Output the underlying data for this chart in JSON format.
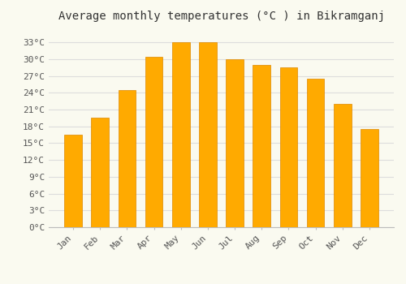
{
  "title": "Average monthly temperatures (°C ) in Bikramganj",
  "months": [
    "Jan",
    "Feb",
    "Mar",
    "Apr",
    "May",
    "Jun",
    "Jul",
    "Aug",
    "Sep",
    "Oct",
    "Nov",
    "Dec"
  ],
  "values": [
    16.5,
    19.5,
    24.5,
    30.5,
    33.0,
    33.0,
    30.0,
    29.0,
    28.5,
    26.5,
    22.0,
    17.5
  ],
  "bar_color": "#FFAA00",
  "bar_edge_color": "#DD8800",
  "bar_color_light": "#FFCC55",
  "background_color": "#FAFAF0",
  "grid_color": "#DDDDDD",
  "yticks": [
    0,
    3,
    6,
    9,
    12,
    15,
    18,
    21,
    24,
    27,
    30,
    33
  ],
  "ylim": [
    0,
    35.5
  ],
  "title_fontsize": 10,
  "tick_fontsize": 8,
  "tick_font_family": "monospace"
}
